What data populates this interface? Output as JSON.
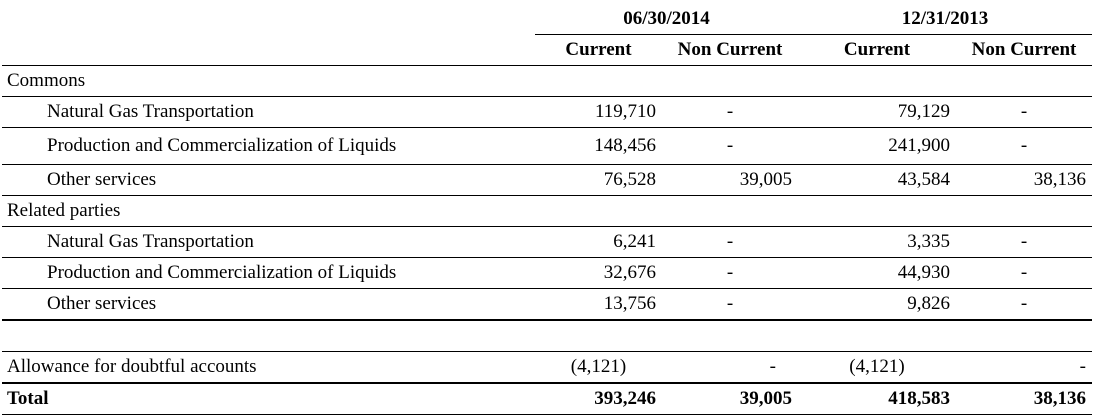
{
  "periods": [
    {
      "date": "06/30/2014",
      "current_label": "Current",
      "noncurrent_label": "Non Current"
    },
    {
      "date": "12/31/2013",
      "current_label": "Current",
      "noncurrent_label": "Non Current"
    }
  ],
  "sections": {
    "commons": {
      "label": "Commons",
      "rows": [
        {
          "label": "Natural Gas Transportation",
          "c1": "119,710",
          "n1": "-",
          "c2": "79,129",
          "n2": "-"
        },
        {
          "label": "Production and Commercialization of Liquids",
          "c1": "148,456",
          "n1": "-",
          "c2": "241,900",
          "n2": "-"
        },
        {
          "label": "Other services",
          "c1": "76,528",
          "n1": "39,005",
          "c2": "43,584",
          "n2": "38,136"
        }
      ]
    },
    "related": {
      "label": "Related parties",
      "rows": [
        {
          "label": "Natural Gas Transportation",
          "c1": "6,241",
          "n1": "-",
          "c2": "3,335",
          "n2": "-"
        },
        {
          "label": "Production and Commercialization of Liquids",
          "c1": "32,676",
          "n1": "-",
          "c2": "44,930",
          "n2": "-"
        },
        {
          "label": "Other services",
          "c1": "13,756",
          "n1": "-",
          "c2": "9,826",
          "n2": "-"
        }
      ]
    }
  },
  "allowance": {
    "label": "Allowance for doubtful accounts",
    "c1": "(4,121)",
    "n1": "-",
    "c2": "(4,121)",
    "n2": "-"
  },
  "total": {
    "label": "Total",
    "c1": "393,246",
    "n1": "39,005",
    "c2": "418,583",
    "n2": "38,136"
  }
}
